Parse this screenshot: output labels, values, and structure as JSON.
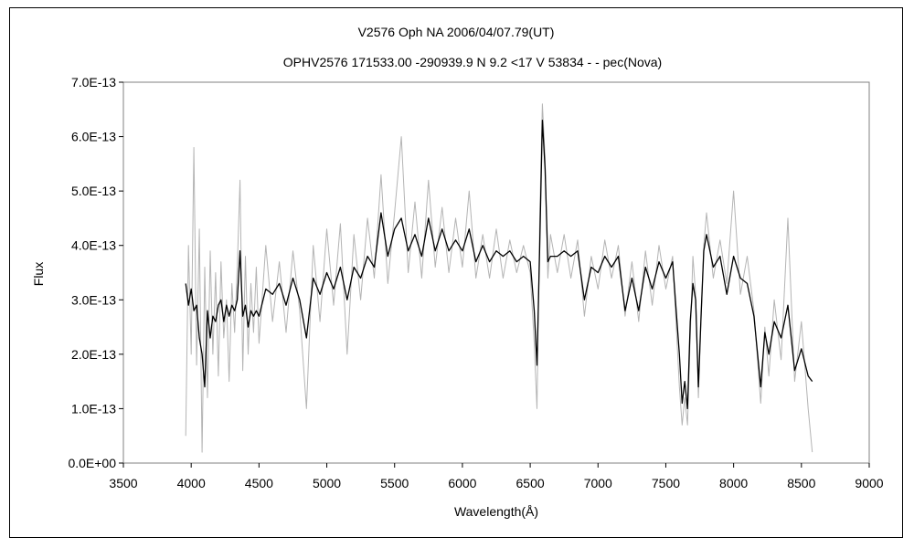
{
  "chart_data": {
    "type": "line",
    "title": "V2576 Oph    NA    2006/04/07.79(UT)",
    "subtitle": "OPHV2576 171533.00 -290939.9 N 9.2 <17  V 53834 - - pec(Nova)",
    "xlabel": "Wavelength(Å)",
    "ylabel": "Flux",
    "xlim": [
      3500,
      9000
    ],
    "ylim": [
      0,
      7e-13
    ],
    "x_ticks": [
      3500,
      4000,
      4500,
      5000,
      5500,
      6000,
      6500,
      7000,
      7500,
      8000,
      8500,
      9000
    ],
    "y_ticks": [
      0,
      1e-13,
      2e-13,
      3e-13,
      4e-13,
      5e-13,
      6e-13,
      7e-13
    ],
    "x_tick_labels": [
      "3500",
      "4000",
      "4500",
      "5000",
      "5500",
      "6000",
      "6500",
      "7000",
      "7500",
      "8000",
      "8500",
      "9000"
    ],
    "y_tick_labels": [
      "0.0E+00",
      "1.0E-13",
      "2.0E-13",
      "3.0E-13",
      "4.0E-13",
      "5.0E-13",
      "6.0E-13",
      "7.0E-13"
    ],
    "grid": false,
    "legend": "none",
    "series": [
      {
        "color": "#b4b4b4",
        "style": "raw",
        "x": [
          3960,
          3980,
          4000,
          4020,
          4040,
          4060,
          4080,
          4100,
          4120,
          4140,
          4160,
          4180,
          4200,
          4220,
          4240,
          4260,
          4280,
          4300,
          4320,
          4340,
          4360,
          4380,
          4400,
          4420,
          4440,
          4460,
          4480,
          4500,
          4550,
          4600,
          4650,
          4700,
          4750,
          4800,
          4850,
          4900,
          4950,
          5000,
          5050,
          5100,
          5150,
          5200,
          5250,
          5300,
          5350,
          5400,
          5450,
          5500,
          5550,
          5600,
          5650,
          5700,
          5750,
          5800,
          5850,
          5900,
          5950,
          6000,
          6050,
          6100,
          6150,
          6200,
          6250,
          6300,
          6350,
          6400,
          6450,
          6500,
          6530,
          6550,
          6570,
          6590,
          6610,
          6630,
          6650,
          6700,
          6750,
          6800,
          6850,
          6900,
          6950,
          7000,
          7050,
          7100,
          7150,
          7200,
          7250,
          7300,
          7350,
          7400,
          7450,
          7500,
          7550,
          7600,
          7620,
          7640,
          7660,
          7680,
          7700,
          7720,
          7740,
          7760,
          7780,
          7800,
          7850,
          7900,
          7950,
          8000,
          8050,
          8100,
          8150,
          8200,
          8230,
          8260,
          8300,
          8350,
          8400,
          8450,
          8500,
          8550,
          8580
        ],
        "y": [
          5e-14,
          4e-13,
          2e-13,
          5.8e-13,
          1.8e-13,
          4.3e-13,
          2e-14,
          3.6e-13,
          1.2e-13,
          3.9e-13,
          2e-13,
          3.5e-13,
          1.6e-13,
          3.7e-13,
          2.3e-13,
          3e-13,
          1.5e-13,
          3.3e-13,
          2.4e-13,
          3.6e-13,
          5.2e-13,
          1.7e-13,
          3.8e-13,
          2e-13,
          3.3e-13,
          2.4e-13,
          3.6e-13,
          2.2e-13,
          4e-13,
          2.6e-13,
          3.7e-13,
          2.4e-13,
          3.9e-13,
          2.8e-13,
          1e-13,
          4e-13,
          2.6e-13,
          4.3e-13,
          2.9e-13,
          4.4e-13,
          2e-13,
          4.2e-13,
          3e-13,
          4.5e-13,
          3.4e-13,
          5.3e-13,
          3.3e-13,
          4.6e-13,
          6e-13,
          3.5e-13,
          4.8e-13,
          3.4e-13,
          5.2e-13,
          3.6e-13,
          4.7e-13,
          3.5e-13,
          4.5e-13,
          3.6e-13,
          5e-13,
          3.4e-13,
          4.2e-13,
          3.4e-13,
          4.3e-13,
          3.4e-13,
          4.1e-13,
          3.5e-13,
          4e-13,
          3.5e-13,
          2.2e-13,
          1e-13,
          4.5e-13,
          6.6e-13,
          5.6e-13,
          3.4e-13,
          4.2e-13,
          3.5e-13,
          4.2e-13,
          3.4e-13,
          4.1e-13,
          2.7e-13,
          3.8e-13,
          3.2e-13,
          4.1e-13,
          3.4e-13,
          4e-13,
          2.7e-13,
          3.7e-13,
          2.6e-13,
          3.9e-13,
          2.9e-13,
          4e-13,
          3.2e-13,
          3.8e-13,
          1.4e-13,
          7e-14,
          1.2e-13,
          7e-14,
          2.3e-13,
          3.8e-13,
          3.1e-13,
          1.2e-13,
          2.6e-13,
          4e-13,
          4.6e-13,
          3.4e-13,
          4.1e-13,
          3.3e-13,
          5e-13,
          3.1e-13,
          3.8e-13,
          2.8e-13,
          1.1e-13,
          2.5e-13,
          1.6e-13,
          3e-13,
          1.9e-13,
          4.5e-13,
          1.5e-13,
          2.6e-13,
          1e-13,
          2e-14
        ]
      },
      {
        "color": "#000000",
        "style": "smoothed",
        "x": [
          3960,
          3980,
          4000,
          4020,
          4040,
          4060,
          4080,
          4100,
          4120,
          4140,
          4160,
          4180,
          4200,
          4220,
          4240,
          4260,
          4280,
          4300,
          4320,
          4340,
          4360,
          4380,
          4400,
          4420,
          4440,
          4460,
          4480,
          4500,
          4550,
          4600,
          4650,
          4700,
          4750,
          4800,
          4850,
          4900,
          4950,
          5000,
          5050,
          5100,
          5150,
          5200,
          5250,
          5300,
          5350,
          5400,
          5450,
          5500,
          5550,
          5600,
          5650,
          5700,
          5750,
          5800,
          5850,
          5900,
          5950,
          6000,
          6050,
          6100,
          6150,
          6200,
          6250,
          6300,
          6350,
          6400,
          6450,
          6500,
          6530,
          6550,
          6570,
          6590,
          6610,
          6630,
          6650,
          6700,
          6750,
          6800,
          6850,
          6900,
          6950,
          7000,
          7050,
          7100,
          7150,
          7200,
          7250,
          7300,
          7350,
          7400,
          7450,
          7500,
          7550,
          7600,
          7620,
          7640,
          7660,
          7680,
          7700,
          7720,
          7740,
          7760,
          7780,
          7800,
          7850,
          7900,
          7950,
          8000,
          8050,
          8100,
          8150,
          8200,
          8230,
          8260,
          8300,
          8350,
          8400,
          8450,
          8500,
          8550,
          8580
        ],
        "y": [
          3.3e-13,
          2.9e-13,
          3.2e-13,
          2.8e-13,
          2.9e-13,
          2.3e-13,
          2e-13,
          1.4e-13,
          2.8e-13,
          2.3e-13,
          2.7e-13,
          2.6e-13,
          2.9e-13,
          3e-13,
          2.6e-13,
          2.9e-13,
          2.7e-13,
          2.9e-13,
          2.8e-13,
          3e-13,
          3.9e-13,
          2.7e-13,
          2.9e-13,
          2.5e-13,
          2.8e-13,
          2.7e-13,
          2.8e-13,
          2.7e-13,
          3.2e-13,
          3.1e-13,
          3.3e-13,
          2.9e-13,
          3.4e-13,
          3e-13,
          2.3e-13,
          3.4e-13,
          3.1e-13,
          3.5e-13,
          3.2e-13,
          3.6e-13,
          3e-13,
          3.6e-13,
          3.4e-13,
          3.8e-13,
          3.6e-13,
          4.6e-13,
          3.8e-13,
          4.3e-13,
          4.5e-13,
          3.9e-13,
          4.2e-13,
          3.8e-13,
          4.5e-13,
          3.9e-13,
          4.3e-13,
          3.9e-13,
          4.1e-13,
          3.9e-13,
          4.3e-13,
          3.7e-13,
          4e-13,
          3.7e-13,
          3.9e-13,
          3.8e-13,
          3.9e-13,
          3.7e-13,
          3.8e-13,
          3.7e-13,
          2.8e-13,
          1.8e-13,
          4e-13,
          6.3e-13,
          5.4e-13,
          3.7e-13,
          3.8e-13,
          3.8e-13,
          3.9e-13,
          3.8e-13,
          3.9e-13,
          3e-13,
          3.6e-13,
          3.5e-13,
          3.8e-13,
          3.6e-13,
          3.8e-13,
          2.8e-13,
          3.4e-13,
          2.8e-13,
          3.6e-13,
          3.2e-13,
          3.7e-13,
          3.4e-13,
          3.7e-13,
          2e-13,
          1.1e-13,
          1.5e-13,
          1e-13,
          2.6e-13,
          3.3e-13,
          3e-13,
          1.4e-13,
          2.7e-13,
          3.9e-13,
          4.2e-13,
          3.6e-13,
          3.8e-13,
          3.1e-13,
          3.8e-13,
          3.4e-13,
          3.3e-13,
          2.7e-13,
          1.4e-13,
          2.4e-13,
          2e-13,
          2.6e-13,
          2.3e-13,
          2.9e-13,
          1.7e-13,
          2.1e-13,
          1.6e-13,
          1.5e-13
        ]
      }
    ]
  }
}
